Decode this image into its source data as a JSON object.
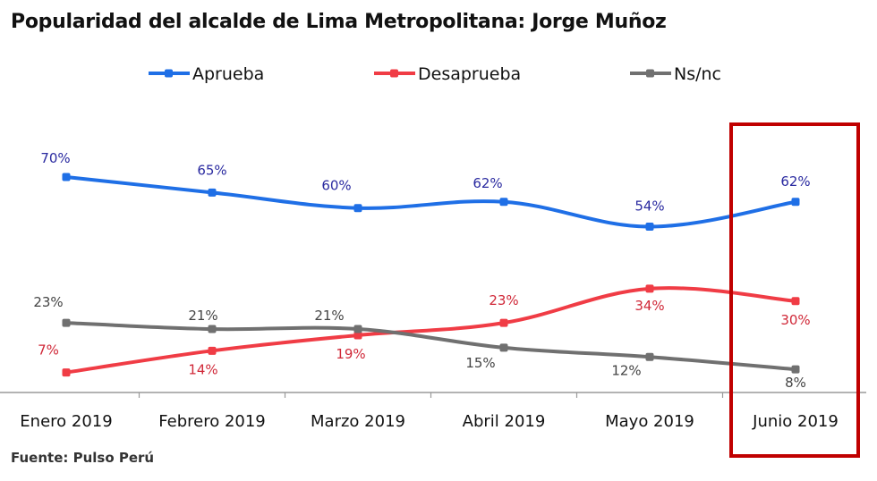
{
  "title": "Popularidad del alcalde de Lima Metropolitana: Jorge Muñoz",
  "source": "Fuente: Pulso Perú",
  "highlight": {
    "category": "Junio 2019",
    "color": "#c00000"
  },
  "chart_data": {
    "type": "line",
    "title": "Popularidad del alcalde de Lima Metropolitana: Jorge Muñoz",
    "xlabel": "",
    "ylabel": "",
    "categories": [
      "Enero 2019",
      "Febrero 2019",
      "Marzo 2019",
      "Abril 2019",
      "Mayo 2019",
      "Junio 2019"
    ],
    "ylim": [
      8,
      70
    ],
    "grid": false,
    "legend_position": "top-center",
    "smooth": true,
    "series": [
      {
        "name": "Aprueba",
        "color": "#1f6fe6",
        "label_color": "#2a2aa0",
        "values": [
          70,
          65,
          60,
          62,
          54,
          62
        ],
        "labels": [
          "70%",
          "65%",
          "60%",
          "62%",
          "54%",
          "62%"
        ]
      },
      {
        "name": "Desaprueba",
        "color": "#f03c45",
        "label_color": "#d02838",
        "values": [
          7,
          14,
          19,
          23,
          34,
          30
        ],
        "labels": [
          "7%",
          "14%",
          "19%",
          "23%",
          "34%",
          "30%"
        ]
      },
      {
        "name": "Ns/nc",
        "color": "#707070",
        "label_color": "#444444",
        "values": [
          23,
          21,
          21,
          15,
          12,
          8
        ],
        "labels": [
          "23%",
          "21%",
          "21%",
          "15%",
          "12%",
          "8%"
        ]
      }
    ]
  }
}
